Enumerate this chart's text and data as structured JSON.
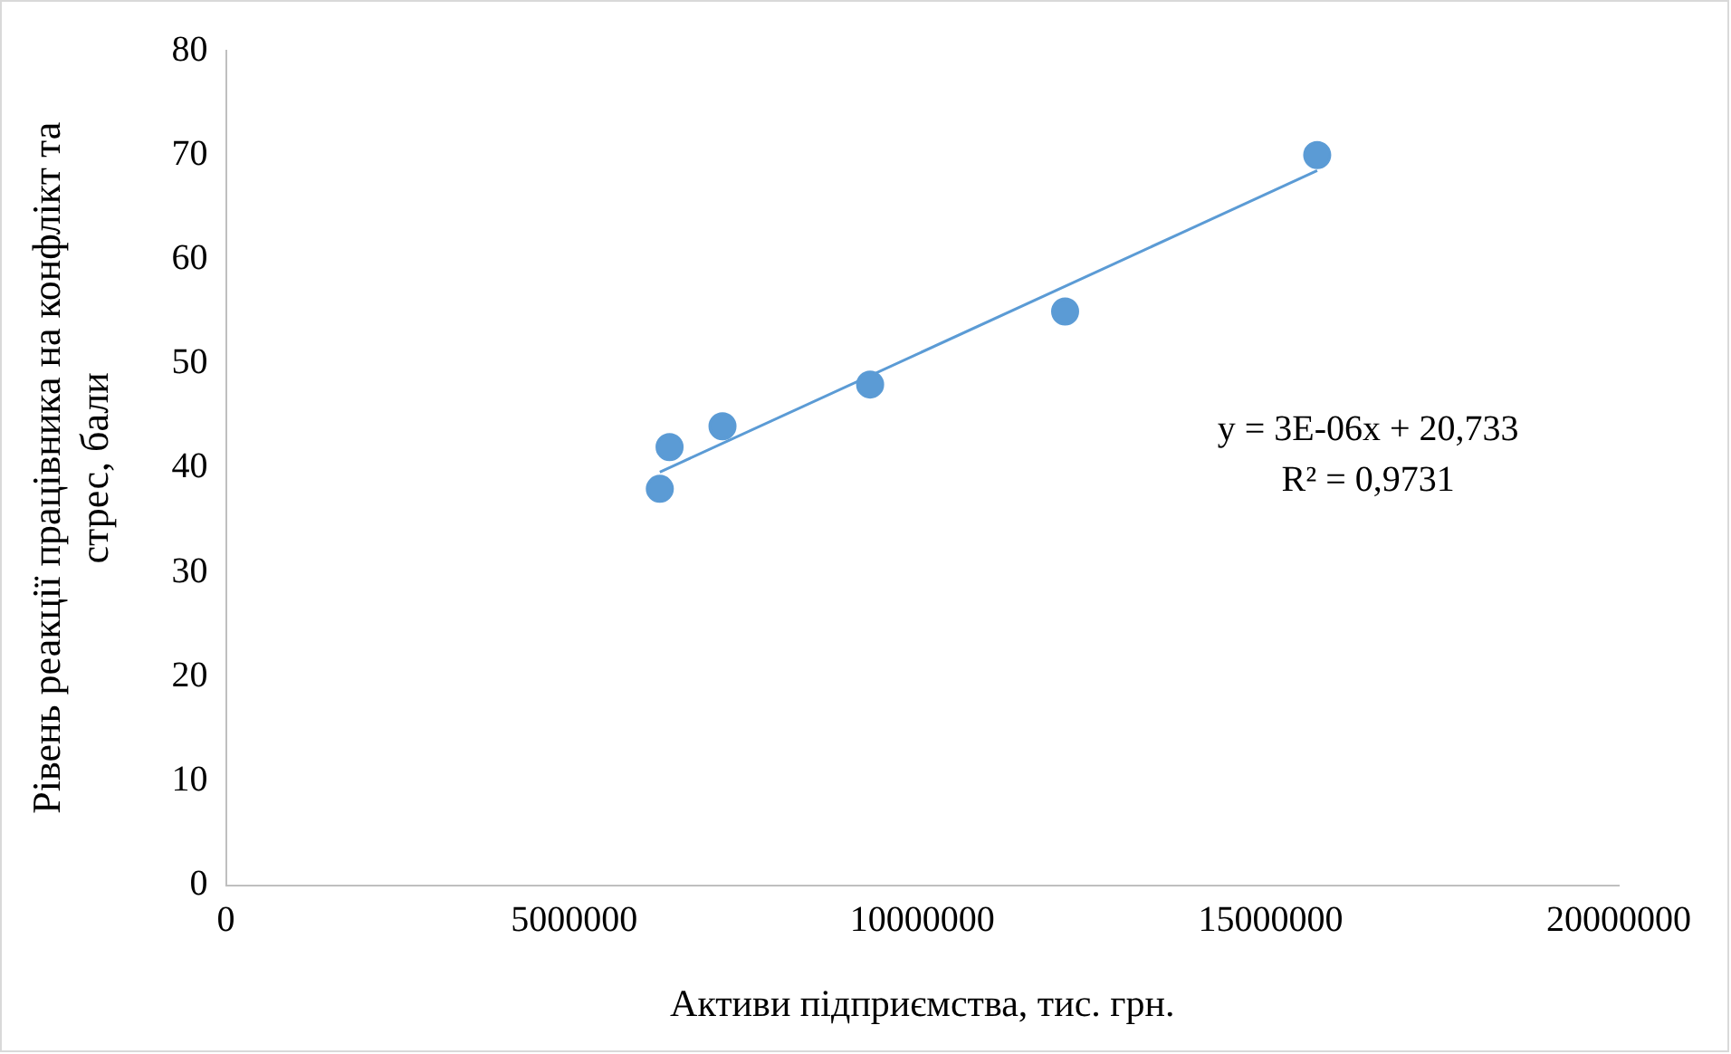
{
  "chart_data": {
    "type": "scatter",
    "xlabel": "Активи підприємства, тис. грн.",
    "ylabel": "Рівень реакції працівника на конфлікт та стрес, бали",
    "xlim": [
      0,
      20000000
    ],
    "xticks": [
      0,
      5000000,
      10000000,
      15000000,
      20000000
    ],
    "ylim": [
      0,
      80
    ],
    "yticks": [
      0,
      10,
      20,
      30,
      40,
      50,
      60,
      70,
      80
    ],
    "grid": false,
    "legend": false,
    "marker": "circle",
    "series": [
      {
        "type": "scatter",
        "color": "#5b9bd5",
        "x": [
          6230000,
          6370000,
          7130000,
          9250000,
          12050000,
          15670000
        ],
        "values": [
          38,
          42,
          44,
          48,
          55,
          70
        ]
      },
      {
        "type": "line",
        "color": "#5b9bd5",
        "line_style": "solid",
        "marker": "none",
        "x": [
          6230000,
          15670000
        ],
        "values": [
          39.6,
          68.5
        ]
      }
    ],
    "annotations": [
      "y = 3E-06x + 20,733",
      "R² = 0,9731"
    ]
  }
}
